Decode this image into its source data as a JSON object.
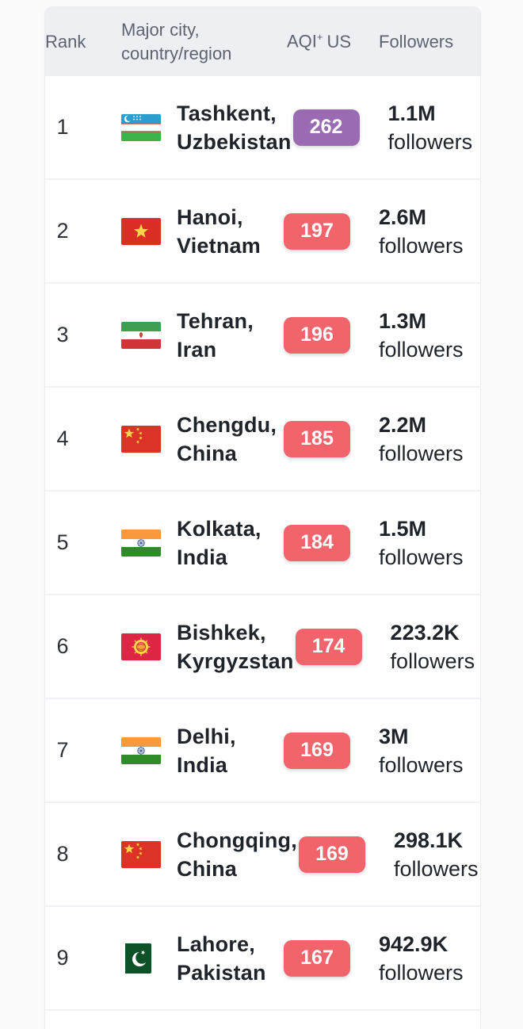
{
  "table": {
    "headers": {
      "rank": "Rank",
      "city": "Major city, country/region",
      "aqi_base": "AQI",
      "aqi_sup": "+",
      "aqi_suffix": "US",
      "followers": "Followers"
    },
    "followers_suffix": "followers",
    "rows": [
      {
        "rank": "1",
        "city": "Tashkent,",
        "country": "Uzbekistan",
        "flag": "uzbekistan-flag",
        "aqi": "262",
        "level": "very_unhealthy",
        "followers": "1.1M"
      },
      {
        "rank": "2",
        "city": "Hanoi,",
        "country": "Vietnam",
        "flag": "vietnam-flag",
        "aqi": "197",
        "level": "unhealthy",
        "followers": "2.6M"
      },
      {
        "rank": "3",
        "city": "Tehran,",
        "country": "Iran",
        "flag": "iran-flag",
        "aqi": "196",
        "level": "unhealthy",
        "followers": "1.3M"
      },
      {
        "rank": "4",
        "city": "Chengdu,",
        "country": "China",
        "flag": "china-flag",
        "aqi": "185",
        "level": "unhealthy",
        "followers": "2.2M"
      },
      {
        "rank": "5",
        "city": "Kolkata,",
        "country": "India",
        "flag": "india-flag",
        "aqi": "184",
        "level": "unhealthy",
        "followers": "1.5M"
      },
      {
        "rank": "6",
        "city": "Bishkek,",
        "country": "Kyrgyzstan",
        "flag": "kyrgyzstan-flag",
        "aqi": "174",
        "level": "unhealthy",
        "followers": "223.2K"
      },
      {
        "rank": "7",
        "city": "Delhi,",
        "country": "India",
        "flag": "india-flag",
        "aqi": "169",
        "level": "unhealthy",
        "followers": "3M"
      },
      {
        "rank": "8",
        "city": "Chongqing,",
        "country": "China",
        "flag": "china-flag",
        "aqi": "169",
        "level": "unhealthy",
        "followers": "298.1K"
      },
      {
        "rank": "9",
        "city": "Lahore,",
        "country": "Pakistan",
        "flag": "pakistan-flag",
        "aqi": "167",
        "level": "unhealthy",
        "followers": "942.9K"
      }
    ]
  },
  "colors": {
    "badge_very_unhealthy": "#9a6bb3",
    "badge_unhealthy": "#f2646b",
    "header_bg": "#edeff3"
  }
}
